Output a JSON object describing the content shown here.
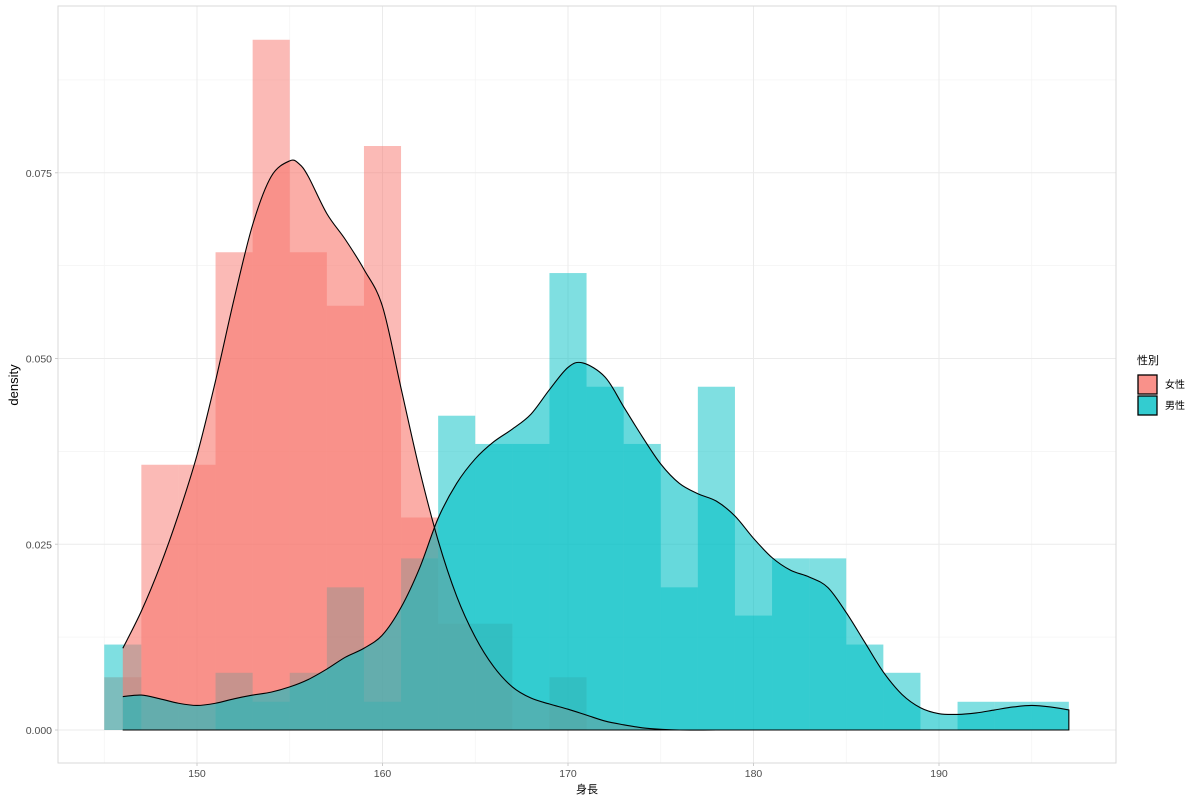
{
  "chart_data": {
    "type": "histogram+density",
    "title": "",
    "xlabel": "身長",
    "ylabel": "density",
    "xlim": [
      142.5,
      199.5
    ],
    "ylim": [
      -0.0045,
      0.097
    ],
    "x_ticks": [
      150,
      160,
      170,
      180,
      190
    ],
    "x_tick_labels": [
      "150",
      "160",
      "170",
      "180",
      "190"
    ],
    "y_ticks": [
      0.0,
      0.025,
      0.05,
      0.075
    ],
    "y_tick_labels": [
      "0.000",
      "0.025",
      "0.050",
      "0.075"
    ],
    "grid": true,
    "bin_width": 2,
    "legend": {
      "title": "性別",
      "position": "right",
      "entries": [
        {
          "label": "女性",
          "color": "#F8766D"
        },
        {
          "label": "男性",
          "color": "#00BFC4"
        }
      ]
    },
    "series": [
      {
        "name": "女性",
        "color": "#F8766D",
        "histogram": {
          "bin_starts": [
            145,
            147,
            149,
            151,
            153,
            155,
            157,
            159,
            161,
            163,
            165,
            167,
            169
          ],
          "values": [
            0.0071,
            0.0357,
            0.0357,
            0.0643,
            0.0929,
            0.0643,
            0.0571,
            0.0786,
            0.0286,
            0.0143,
            0.0143,
            0.0,
            0.0071
          ]
        },
        "density": {
          "x": [
            146,
            147,
            148,
            149,
            150,
            151,
            152,
            153,
            154,
            155,
            155.5,
            156,
            157,
            158,
            159,
            160,
            161,
            162,
            163,
            164,
            165,
            166,
            167,
            168,
            169,
            170,
            171,
            172,
            173,
            174,
            175,
            176,
            178,
            180,
            185,
            190,
            197
          ],
          "y": [
            0.011,
            0.016,
            0.022,
            0.029,
            0.037,
            0.047,
            0.058,
            0.068,
            0.0745,
            0.0766,
            0.0762,
            0.0745,
            0.0695,
            0.066,
            0.062,
            0.057,
            0.046,
            0.035,
            0.0255,
            0.018,
            0.0125,
            0.0085,
            0.0058,
            0.0043,
            0.0035,
            0.0028,
            0.002,
            0.0012,
            0.0007,
            0.0003,
            0.0001,
            0.0,
            0.0,
            0.0,
            0.0,
            0.0,
            0.0
          ]
        }
      },
      {
        "name": "男性",
        "color": "#00BFC4",
        "histogram": {
          "bin_starts": [
            145,
            147,
            149,
            151,
            153,
            155,
            157,
            159,
            161,
            163,
            165,
            167,
            169,
            171,
            173,
            175,
            177,
            179,
            181,
            183,
            185,
            187,
            189,
            191,
            193,
            195
          ],
          "values": [
            0.0115,
            0.0,
            0.0,
            0.0077,
            0.0038,
            0.0077,
            0.0192,
            0.0038,
            0.0231,
            0.0423,
            0.0385,
            0.0385,
            0.0615,
            0.0462,
            0.0385,
            0.0192,
            0.0462,
            0.0154,
            0.0231,
            0.0231,
            0.0115,
            0.0077,
            0.0,
            0.0038,
            0.0038,
            0.0038
          ]
        },
        "density": {
          "x": [
            146,
            147,
            148,
            149,
            150,
            151,
            152,
            153,
            154,
            155,
            156,
            157,
            158,
            159,
            160,
            161,
            162,
            163,
            164,
            165,
            166,
            167,
            168,
            169,
            170,
            170.8,
            172,
            173,
            174,
            175,
            176,
            177,
            178,
            179,
            180,
            181,
            182,
            183,
            184,
            185,
            186,
            187,
            188,
            189,
            190,
            191,
            192,
            193,
            194,
            195,
            196,
            197
          ],
          "y": [
            0.0045,
            0.0047,
            0.0042,
            0.0036,
            0.0033,
            0.0036,
            0.0042,
            0.0047,
            0.0051,
            0.0058,
            0.0068,
            0.0082,
            0.0098,
            0.011,
            0.0128,
            0.0165,
            0.0218,
            0.0285,
            0.0332,
            0.0365,
            0.0388,
            0.0405,
            0.0425,
            0.0458,
            0.0488,
            0.0494,
            0.0475,
            0.0435,
            0.0395,
            0.0358,
            0.0332,
            0.0318,
            0.0308,
            0.0288,
            0.0258,
            0.0232,
            0.0215,
            0.0206,
            0.0192,
            0.0158,
            0.0118,
            0.0078,
            0.0048,
            0.003,
            0.0022,
            0.0021,
            0.0023,
            0.0027,
            0.0031,
            0.0033,
            0.0031,
            0.0027
          ]
        }
      }
    ]
  }
}
